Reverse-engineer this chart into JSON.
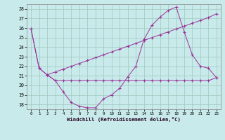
{
  "bg_color": "#c8eaea",
  "grid_color": "#a0c8be",
  "line_color": "#993399",
  "xlim": [
    -0.5,
    23.5
  ],
  "ylim": [
    17.5,
    28.5
  ],
  "yticks": [
    18,
    19,
    20,
    21,
    22,
    23,
    24,
    25,
    26,
    27,
    28
  ],
  "xticks": [
    0,
    1,
    2,
    3,
    4,
    5,
    6,
    7,
    8,
    9,
    10,
    11,
    12,
    13,
    14,
    15,
    16,
    17,
    18,
    19,
    20,
    21,
    22,
    23
  ],
  "xlabel": "Windchill (Refroidissement éolien,°C)",
  "s1_x": [
    0,
    1,
    2,
    3,
    4,
    5,
    6,
    7,
    8,
    9,
    10,
    11,
    12,
    13,
    14,
    15,
    16,
    17,
    18,
    19,
    20,
    21,
    22,
    23
  ],
  "s1_y": [
    25.9,
    21.8,
    21.1,
    20.5,
    19.3,
    18.2,
    17.8,
    17.65,
    17.65,
    18.6,
    19.0,
    19.7,
    20.9,
    22.0,
    24.8,
    26.3,
    27.15,
    27.85,
    28.2,
    25.6,
    23.2,
    22.0,
    21.8,
    20.8
  ],
  "s2_x": [
    0,
    1,
    2,
    3,
    4,
    5,
    6,
    7,
    8,
    9,
    10,
    11,
    12,
    13,
    14,
    15,
    16,
    17,
    18,
    19,
    20,
    21,
    22,
    23
  ],
  "s2_y": [
    25.9,
    21.8,
    21.1,
    21.4,
    21.7,
    22.0,
    22.3,
    22.6,
    22.9,
    23.2,
    23.5,
    23.8,
    24.1,
    24.4,
    24.7,
    25.0,
    25.3,
    25.6,
    25.9,
    26.2,
    26.5,
    26.8,
    27.1,
    27.5
  ],
  "s3_x": [
    2,
    3,
    4,
    5,
    6,
    7,
    8,
    9,
    10,
    11,
    12,
    13,
    14,
    15,
    16,
    17,
    18,
    19,
    20,
    21,
    22,
    23
  ],
  "s3_y": [
    21.1,
    20.5,
    20.5,
    20.5,
    20.5,
    20.5,
    20.5,
    20.5,
    20.5,
    20.5,
    20.5,
    20.5,
    20.5,
    20.5,
    20.5,
    20.5,
    20.5,
    20.5,
    20.5,
    20.5,
    20.5,
    20.8
  ]
}
